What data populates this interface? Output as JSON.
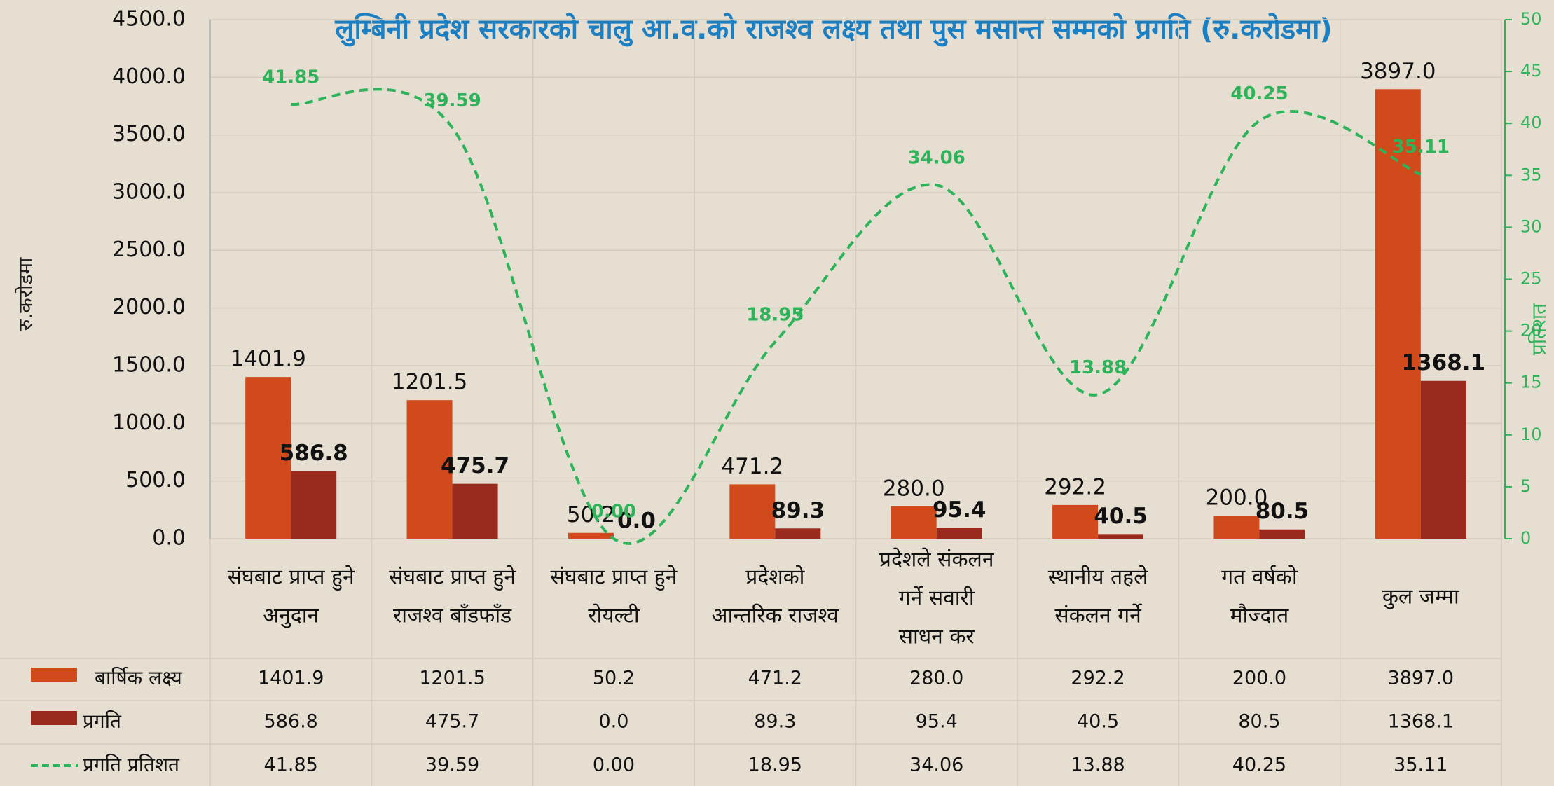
{
  "chart_data": {
    "type": "bar",
    "title": "लुम्बिनी प्रदेश सरकारको चालु आ.व.को राजश्व लक्ष्य तथा पुस मसान्त सम्मको प्रगति (रु.करोडमा)",
    "y_label": "रु.करोडमा",
    "y2_label": "प्रतिशत",
    "categories": [
      [
        "संघबाट प्राप्त हुने",
        "अनुदान"
      ],
      [
        "संघबाट प्राप्त हुने",
        "राजश्व बाँडफाँड"
      ],
      [
        "संघबाट प्राप्त हुने",
        "रोयल्टी"
      ],
      [
        "प्रदेशको",
        "आन्तरिक राजश्व"
      ],
      [
        "प्रदेशले संकलन",
        "गर्ने सवारी",
        "साधन कर"
      ],
      [
        "स्थानीय तहले",
        "संकलन गर्ने"
      ],
      [
        "गत वर्षको",
        "मौज्दात"
      ],
      [
        "कुल जम्मा"
      ]
    ],
    "series": [
      {
        "name": "बार्षिक लक्ष्य",
        "type": "bar",
        "color": "#d04a1b",
        "values": [
          1401.9,
          1201.5,
          50.2,
          471.2,
          280,
          292.2,
          200,
          3897
        ],
        "value_labels": [
          "1401.9",
          "1201.5",
          "50.2",
          "471.2",
          "280.0",
          "292.2",
          "200.0",
          "3897.0"
        ]
      },
      {
        "name": "प्रगति",
        "type": "bar",
        "color": "#9b2a1e",
        "values": [
          586.8,
          475.7,
          0,
          89.3,
          95.4,
          40.5,
          80.5,
          1368.1
        ],
        "value_labels": [
          "586.8",
          "475.7",
          "0.0",
          "89.3",
          "95.4",
          "40.5",
          "80.5",
          "1368.1"
        ]
      },
      {
        "name": "प्रगति प्रतिशत",
        "type": "line",
        "axis": "y2",
        "color": "#2db35a",
        "values": [
          41.85,
          39.59,
          0,
          18.95,
          34.06,
          13.88,
          40.25,
          35.11
        ],
        "value_labels": [
          "41.85",
          "39.59",
          "0.00",
          "18.95",
          "34.06",
          "13.88",
          "40.25",
          "35.11"
        ]
      }
    ],
    "ylim": [
      0,
      4500
    ],
    "yticks": [
      {
        "value": 0,
        "label": "0.0"
      },
      {
        "value": 500,
        "label": "500.0"
      },
      {
        "value": 1000,
        "label": "1000.0"
      },
      {
        "value": 1500,
        "label": "1500.0"
      },
      {
        "value": 2000,
        "label": "2000.0"
      },
      {
        "value": 2500,
        "label": "2500.0"
      },
      {
        "value": 3000,
        "label": "3000.0"
      },
      {
        "value": 3500,
        "label": "3500.0"
      },
      {
        "value": 4000,
        "label": "4000.0"
      },
      {
        "value": 4500,
        "label": "4500.0"
      }
    ],
    "y2lim": [
      0,
      50
    ],
    "y2ticks": [
      0,
      5,
      10,
      15,
      20,
      25,
      30,
      35,
      40,
      45,
      50
    ],
    "grid": true
  }
}
